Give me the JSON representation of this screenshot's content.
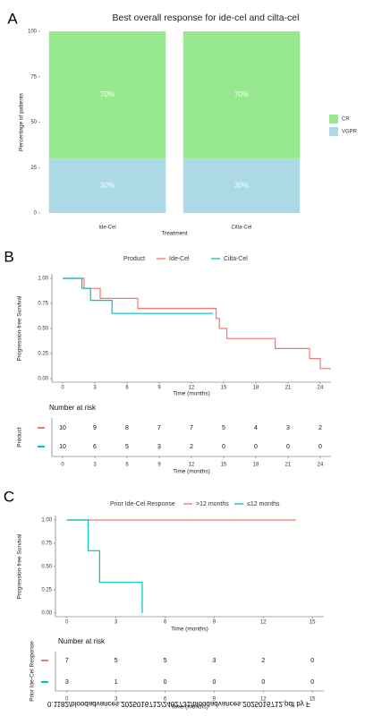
{
  "chart_data": [
    {
      "type": "bar",
      "panel": "A",
      "title": "Best overall response for ide-cel and cilta-cel",
      "categories": [
        "Ide-Cel",
        "Cilta-Cel"
      ],
      "series": [
        {
          "name": "VGPR",
          "color": "#add8e6",
          "values": [
            30,
            30
          ],
          "value_labels": [
            "30%",
            "30%"
          ]
        },
        {
          "name": "CR",
          "color": "#98e890",
          "values": [
            70,
            70
          ],
          "value_labels": [
            "70%",
            "70%"
          ]
        }
      ],
      "ylim": [
        0,
        100
      ],
      "yticks": [
        0,
        25,
        50,
        75,
        100
      ],
      "ylabel": "Percentage of patients",
      "xlabel": "Treatment",
      "legend": "right"
    },
    {
      "type": "line",
      "panel": "B",
      "legend_title": "Product",
      "series": [
        {
          "name": "Ide-Cel",
          "color": "#f8766d",
          "x": [
            0,
            2,
            2,
            3.5,
            3.5,
            7,
            7,
            14.3,
            14.3,
            14.6,
            14.6,
            15.3,
            15.3,
            19.8,
            19.8,
            23,
            23,
            24,
            24,
            25
          ],
          "values": [
            1,
            1,
            0.9,
            0.9,
            0.8,
            0.8,
            0.7,
            0.7,
            0.6,
            0.6,
            0.5,
            0.5,
            0.4,
            0.4,
            0.3,
            0.3,
            0.2,
            0.2,
            0.1,
            0.1
          ]
        },
        {
          "name": "Cilta-Cel",
          "color": "#00bfc4",
          "x": [
            0,
            1.8,
            1.8,
            2.6,
            2.6,
            4.6,
            4.6,
            14
          ],
          "values": [
            1,
            1,
            0.9,
            0.9,
            0.78,
            0.78,
            0.65,
            0.65
          ]
        }
      ],
      "xlim": [
        -1,
        25
      ],
      "xticks": [
        0,
        3,
        6,
        9,
        12,
        15,
        18,
        21,
        24
      ],
      "ylim": [
        0,
        1
      ],
      "yticks": [
        {
          "value": 0,
          "label": "0.00"
        },
        {
          "value": 0.25,
          "label": "0.25"
        },
        {
          "value": 0.5,
          "label": "0.50"
        },
        {
          "value": 0.75,
          "label": "0.75"
        },
        {
          "value": 1,
          "label": "1.00"
        }
      ],
      "xlabel": "Time (months)",
      "ylabel": "Progression-free Survival",
      "legend": "top",
      "risk_table": {
        "title": "Number at risk",
        "ylabel": "Product",
        "rows": [
          {
            "values": [
              10,
              9,
              8,
              7,
              7,
              5,
              4,
              3,
              2
            ]
          },
          {
            "values": [
              10,
              6,
              5,
              3,
              2,
              0,
              0,
              0,
              0
            ]
          }
        ]
      }
    },
    {
      "type": "line",
      "panel": "C",
      "legend_title": "Prior Ide-Cel Response",
      "series": [
        {
          "name": ">12 months",
          "color": "#f8766d",
          "x": [
            0,
            14
          ],
          "values": [
            1,
            1
          ]
        },
        {
          "name": "≤12 months",
          "color": "#00bfc4",
          "x": [
            0,
            1.3,
            1.3,
            2,
            2,
            4.6,
            4.6
          ],
          "values": [
            1,
            1,
            0.67,
            0.67,
            0.33,
            0.33,
            0
          ]
        }
      ],
      "xlim": [
        -0.7,
        15.7
      ],
      "xticks": [
        0,
        3,
        6,
        9,
        12,
        15
      ],
      "ylim": [
        0,
        1
      ],
      "yticks": [
        {
          "value": 0,
          "label": "0.00"
        },
        {
          "value": 0.25,
          "label": "0.25"
        },
        {
          "value": 0.5,
          "label": "0.50"
        },
        {
          "value": 0.75,
          "label": "0.75"
        },
        {
          "value": 1,
          "label": "1.00"
        }
      ],
      "xlabel": "Time (months)",
      "ylabel": "Progression-free Survival",
      "legend": "top",
      "risk_table": {
        "title": "Number at risk",
        "ylabel": "Prior Ide-Cel Response",
        "rows": [
          {
            "values": [
              7,
              5,
              5,
              3,
              2,
              0
            ]
          },
          {
            "values": [
              3,
              1,
              0,
              0,
              0,
              0
            ]
          }
        ]
      }
    }
  ],
  "footer_text": "0.1182/bloodadvances.2025016712/2402731/bloodadvances.2025016712.pdf by F"
}
